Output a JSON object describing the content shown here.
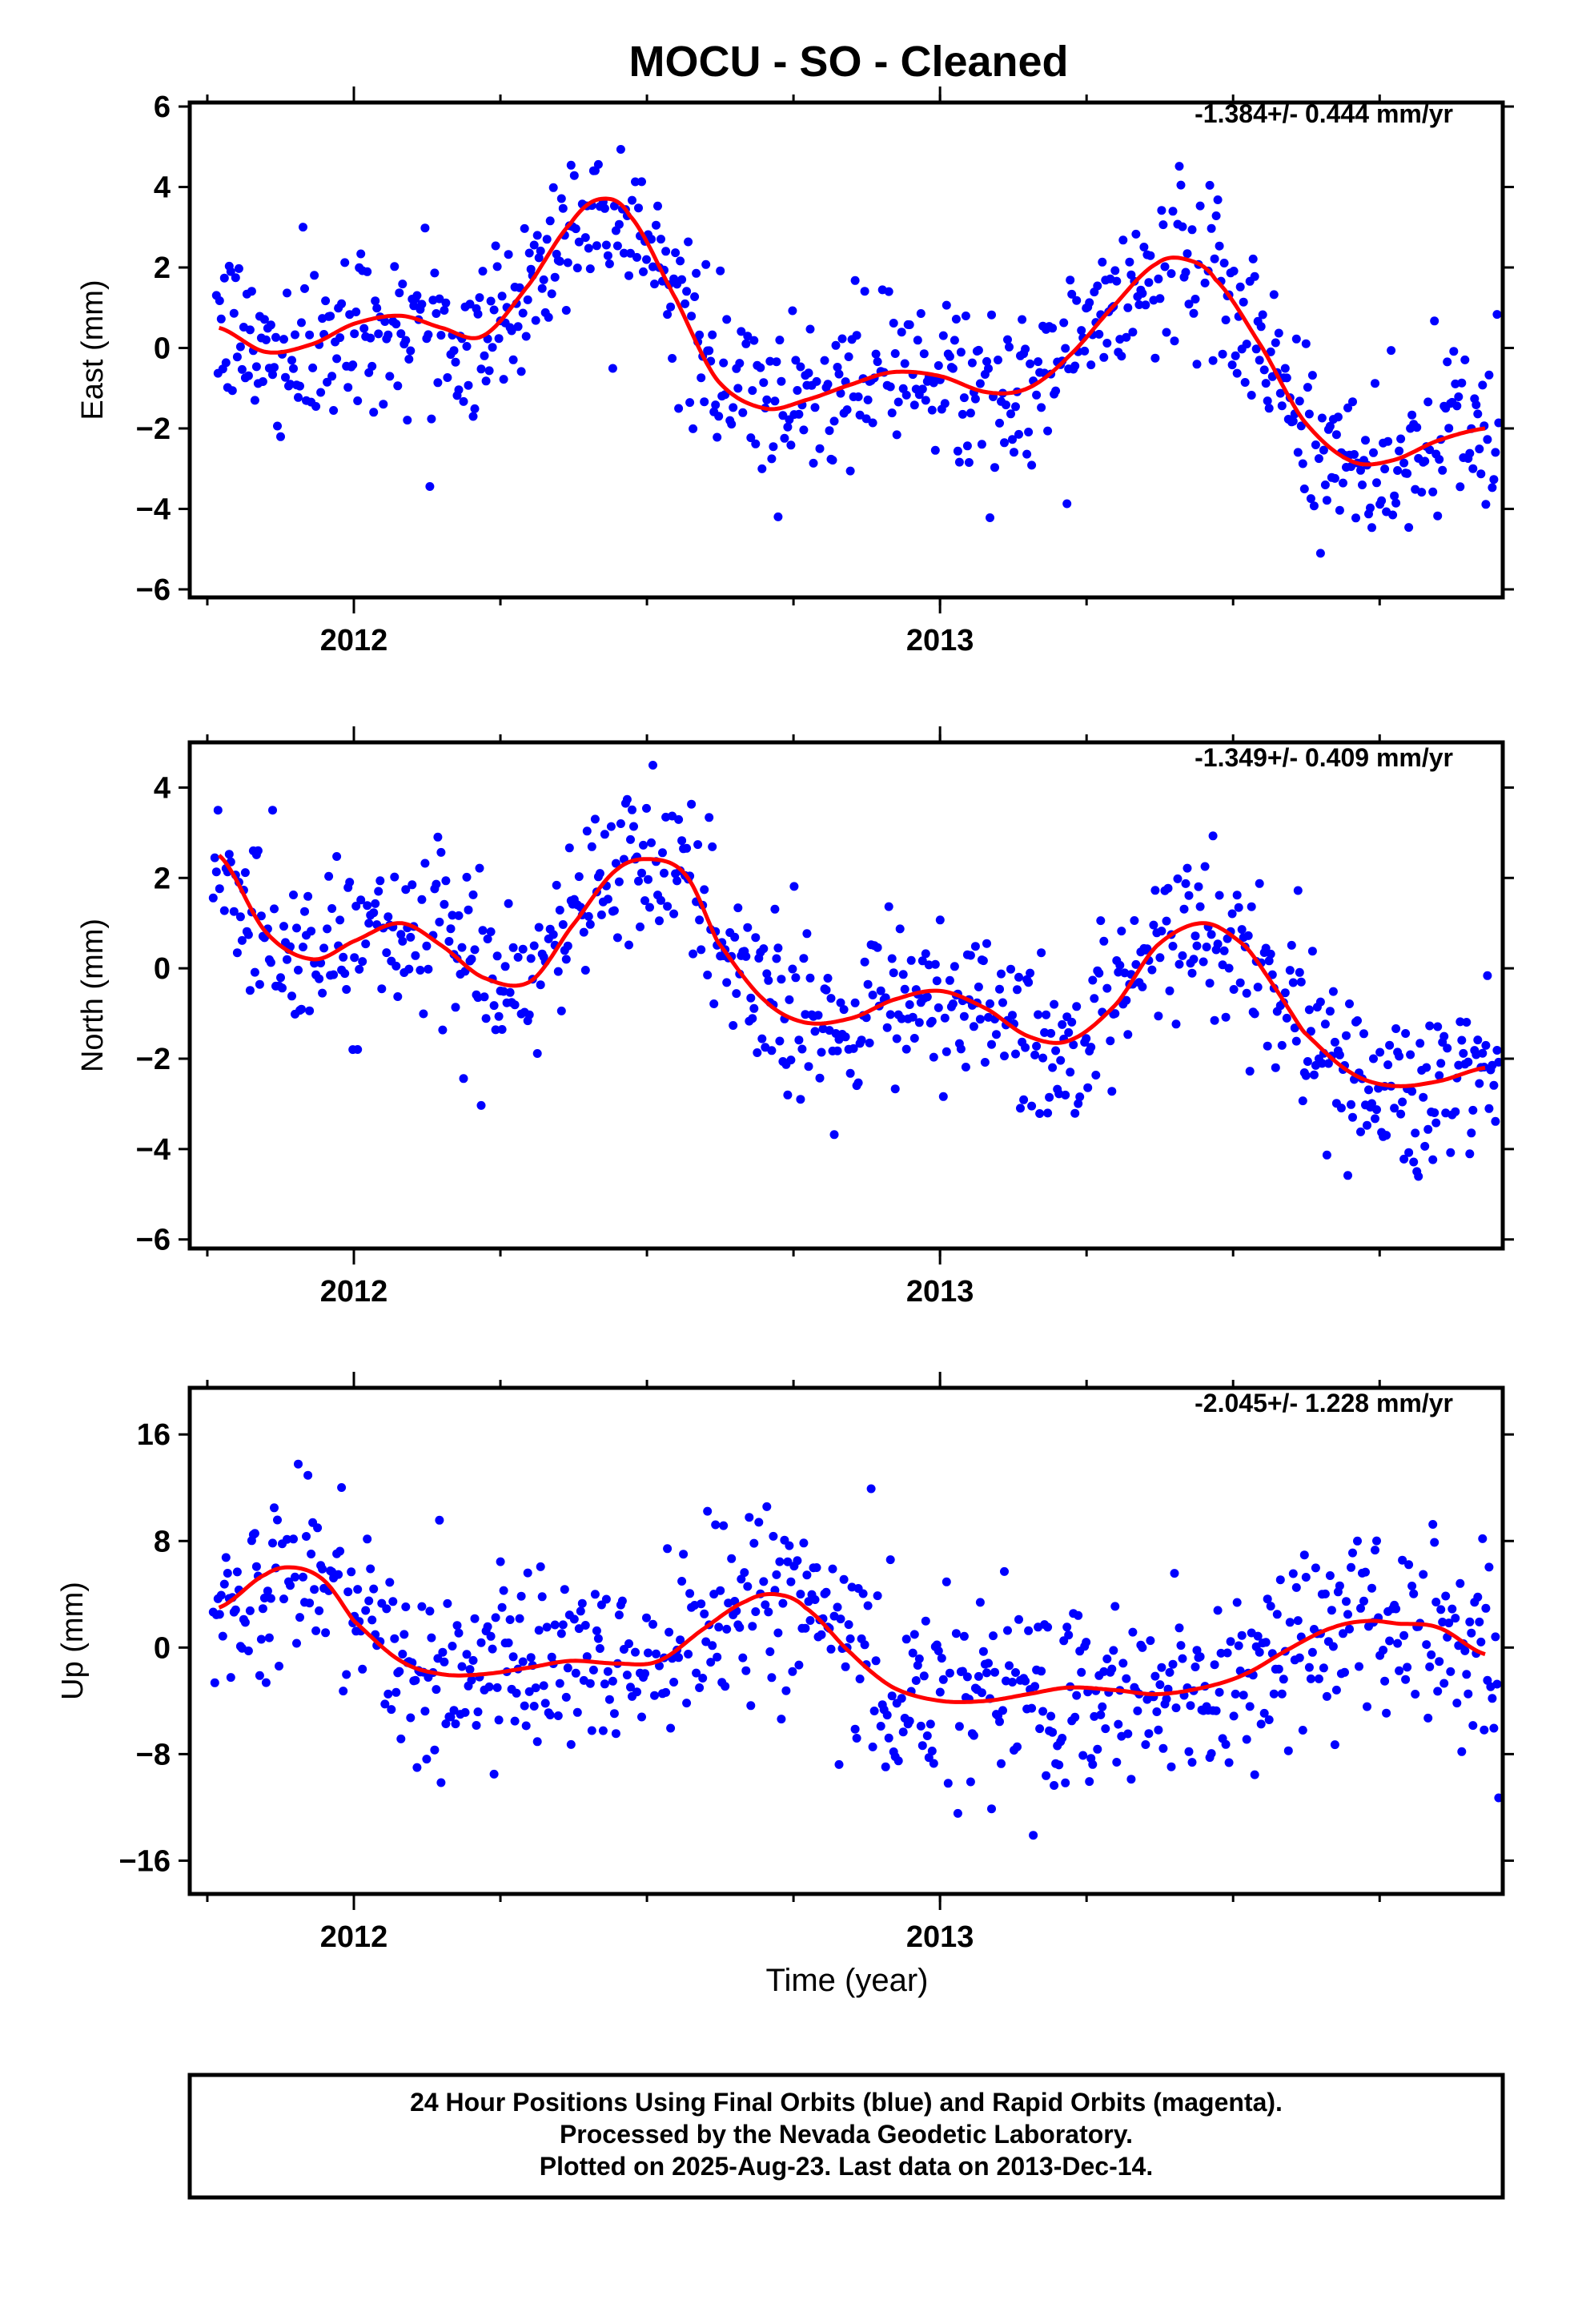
{
  "title": "MOCU  - SO - Cleaned",
  "x_axis_label": "Time (year)",
  "footer": {
    "line1": "24 Hour Positions Using Final Orbits (blue) and Rapid Orbits (magenta).",
    "line2": "Processed by the Nevada Geodetic Laboratory.",
    "line3": "Plotted on 2025-Aug-23. Last data on 2013-Dec-14."
  },
  "colors": {
    "final_orbits": "#0000ff",
    "model_fit": "#ff0000",
    "frame": "#000000"
  },
  "chart_data": [
    {
      "type": "scatter",
      "panel": "east",
      "ylabel": "East (mm)",
      "rate_text": "-1.384+/- 0.444 mm/yr",
      "xlim": [
        2011.72,
        2013.96
      ],
      "ylim": [
        -6.2,
        6.1
      ],
      "ytick_values": [
        -6,
        -4,
        -2,
        0,
        2,
        4,
        6
      ],
      "ytick_labels": [
        "−6",
        "−4",
        "−2",
        "0",
        "2",
        "4",
        "6"
      ],
      "xtick_labels": [
        "2012",
        "2013"
      ],
      "xtick_values": [
        2012.0,
        2013.0
      ],
      "fit_curve": {
        "x": [
          2011.77,
          2011.85,
          2011.93,
          2012.0,
          2012.08,
          2012.15,
          2012.22,
          2012.3,
          2012.37,
          2012.42,
          2012.47,
          2012.55,
          2012.62,
          2012.7,
          2012.77,
          2012.85,
          2012.92,
          2013.0,
          2013.08,
          2013.15,
          2013.22,
          2013.3,
          2013.37,
          2013.42,
          2013.47,
          2013.55,
          2013.62,
          2013.7,
          2013.77,
          2013.85,
          2013.93
        ],
        "y": [
          0.5,
          -0.1,
          0.1,
          0.6,
          0.8,
          0.5,
          0.3,
          1.6,
          3.1,
          3.7,
          3.3,
          1.2,
          -0.8,
          -1.5,
          -1.3,
          -0.9,
          -0.6,
          -0.7,
          -1.1,
          -1.0,
          -0.2,
          1.1,
          2.1,
          2.2,
          1.7,
          0.0,
          -1.8,
          -2.8,
          -2.8,
          -2.3,
          -2.0
        ]
      }
    },
    {
      "type": "scatter",
      "panel": "north",
      "ylabel": "North (mm)",
      "rate_text": "-1.349+/- 0.409 mm/yr",
      "xlim": [
        2011.72,
        2013.96
      ],
      "ylim": [
        -6.2,
        5.0
      ],
      "ytick_values": [
        -6,
        -4,
        -2,
        0,
        2,
        4
      ],
      "ytick_labels": [
        "−6",
        "−4",
        "−2",
        "0",
        "2",
        "4"
      ],
      "xtick_labels": [
        "2012",
        "2013"
      ],
      "xtick_values": [
        2012.0,
        2013.0
      ],
      "fit_curve": {
        "x": [
          2011.77,
          2011.85,
          2011.93,
          2012.0,
          2012.08,
          2012.15,
          2012.22,
          2012.3,
          2012.37,
          2012.45,
          2012.52,
          2012.57,
          2012.62,
          2012.7,
          2012.77,
          2012.85,
          2012.92,
          2013.0,
          2013.08,
          2013.15,
          2013.22,
          2013.3,
          2013.37,
          2013.45,
          2013.52,
          2013.57,
          2013.62,
          2013.7,
          2013.77,
          2013.85,
          2013.93
        ],
        "y": [
          2.5,
          0.8,
          0.2,
          0.6,
          1.0,
          0.5,
          -0.2,
          -0.3,
          0.9,
          2.2,
          2.4,
          2.0,
          0.6,
          -0.7,
          -1.2,
          -1.1,
          -0.7,
          -0.5,
          -0.9,
          -1.5,
          -1.6,
          -0.8,
          0.5,
          1.0,
          0.5,
          -0.4,
          -1.4,
          -2.3,
          -2.6,
          -2.5,
          -2.2
        ]
      }
    },
    {
      "type": "scatter",
      "panel": "up",
      "ylabel": "Up (mm)",
      "rate_text": "-2.045+/- 1.228 mm/yr",
      "xlim": [
        2011.72,
        2013.96
      ],
      "ylim": [
        -18.5,
        19.5
      ],
      "ytick_values": [
        -16,
        -8,
        0,
        8,
        16
      ],
      "ytick_labels": [
        "−16",
        "−8",
        "0",
        "8",
        "16"
      ],
      "xtick_labels": [
        "2012",
        "2013"
      ],
      "xtick_values": [
        2012.0,
        2013.0
      ],
      "fit_curve": {
        "x": [
          2011.77,
          2011.85,
          2011.9,
          2011.95,
          2012.0,
          2012.08,
          2012.15,
          2012.22,
          2012.3,
          2012.37,
          2012.45,
          2012.52,
          2012.6,
          2012.67,
          2012.72,
          2012.77,
          2012.85,
          2012.92,
          2013.0,
          2013.08,
          2013.15,
          2013.22,
          2013.3,
          2013.37,
          2013.45,
          2013.52,
          2013.6,
          2013.67,
          2013.73,
          2013.78,
          2013.85,
          2013.93
        ],
        "y": [
          3.0,
          5.5,
          6.0,
          5.0,
          2.0,
          -1.0,
          -2.0,
          -2.0,
          -1.5,
          -1.0,
          -1.2,
          -1.0,
          1.5,
          3.5,
          4.0,
          3.0,
          -0.5,
          -3.0,
          -4.0,
          -4.0,
          -3.5,
          -3.0,
          -3.2,
          -3.5,
          -3.0,
          -2.0,
          0.0,
          1.5,
          2.0,
          1.8,
          1.5,
          -0.5
        ]
      }
    }
  ]
}
